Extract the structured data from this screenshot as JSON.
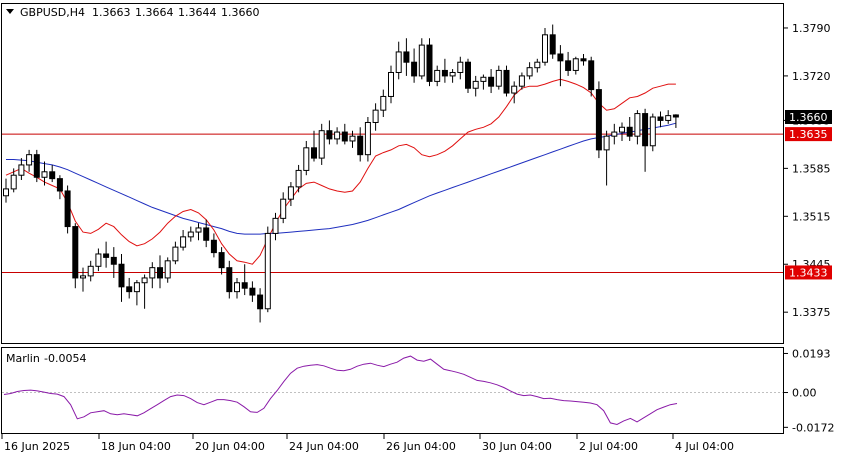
{
  "header": {
    "symbol": "GBPUSD,H4",
    "open": "1.3663",
    "high": "1.3664",
    "low": "1.3644",
    "close": "1.3660"
  },
  "indicator": {
    "name": "Marlin",
    "value": "-0.0054"
  },
  "colors": {
    "candle_body": "#000000",
    "ma_blue": "#1f2fbf",
    "ma_red": "#e01010",
    "level_line": "#c80000",
    "oscillator": "#8a1aa8",
    "price_tag_dark": "#000000",
    "price_tag_red": "#e00000"
  },
  "chart_data": [
    {
      "type": "candlestick",
      "title": "GBPUSD,H4",
      "ylim": [
        1.333,
        1.3825
      ],
      "y_ticks": [
        "1.3790",
        "1.3720",
        "1.3655",
        "1.3585",
        "1.3515",
        "1.3445",
        "1.3375"
      ],
      "x_ticks": [
        "16 Jun 2025",
        "18 Jun 04:00",
        "20 Jun 04:00",
        "24 Jun 04:00",
        "26 Jun 04:00",
        "30 Jun 04:00",
        "2 Jul 04:00",
        "4 Jul 04:00"
      ],
      "levels": [
        {
          "label": "1.3635",
          "value": 1.3635
        },
        {
          "label": "1.3433",
          "value": 1.3433
        }
      ],
      "current_price_label": "1.3660",
      "current_price": 1.366,
      "candles": [
        [
          1.3545,
          1.357,
          1.3535,
          1.3555
        ],
        [
          1.3555,
          1.3585,
          1.355,
          1.3575
        ],
        [
          1.3575,
          1.36,
          1.3568,
          1.359
        ],
        [
          1.359,
          1.3612,
          1.358,
          1.3605
        ],
        [
          1.3605,
          1.3612,
          1.3565,
          1.3572
        ],
        [
          1.3572,
          1.3595,
          1.356,
          1.358
        ],
        [
          1.358,
          1.359,
          1.3565,
          1.357
        ],
        [
          1.357,
          1.3575,
          1.354,
          1.3552
        ],
        [
          1.3552,
          1.356,
          1.349,
          1.35
        ],
        [
          1.35,
          1.3505,
          1.341,
          1.3425
        ],
        [
          1.3425,
          1.344,
          1.3405,
          1.3428
        ],
        [
          1.3428,
          1.345,
          1.342,
          1.3442
        ],
        [
          1.3442,
          1.3468,
          1.3435,
          1.346
        ],
        [
          1.346,
          1.3478,
          1.344,
          1.3455
        ],
        [
          1.3455,
          1.347,
          1.3425,
          1.3445
        ],
        [
          1.3445,
          1.346,
          1.339,
          1.3412
        ],
        [
          1.3412,
          1.3425,
          1.3395,
          1.3405
        ],
        [
          1.3405,
          1.3422,
          1.3385,
          1.3418
        ],
        [
          1.3418,
          1.343,
          1.338,
          1.3425
        ],
        [
          1.3425,
          1.3448,
          1.341,
          1.344
        ],
        [
          1.344,
          1.3458,
          1.341,
          1.3425
        ],
        [
          1.3425,
          1.3455,
          1.3418,
          1.345
        ],
        [
          1.345,
          1.3478,
          1.3445,
          1.347
        ],
        [
          1.347,
          1.3495,
          1.3465,
          1.3485
        ],
        [
          1.3485,
          1.35,
          1.3478,
          1.3492
        ],
        [
          1.3492,
          1.3505,
          1.348,
          1.3498
        ],
        [
          1.3498,
          1.351,
          1.347,
          1.348
        ],
        [
          1.348,
          1.349,
          1.3455,
          1.3462
        ],
        [
          1.3462,
          1.347,
          1.343,
          1.344
        ],
        [
          1.344,
          1.345,
          1.3395,
          1.3405
        ],
        [
          1.3405,
          1.3425,
          1.3395,
          1.3418
        ],
        [
          1.3418,
          1.3445,
          1.34,
          1.341
        ],
        [
          1.341,
          1.342,
          1.339,
          1.34
        ],
        [
          1.34,
          1.341,
          1.336,
          1.338
        ],
        [
          1.338,
          1.35,
          1.3375,
          1.349
        ],
        [
          1.349,
          1.352,
          1.348,
          1.3512
        ],
        [
          1.3512,
          1.355,
          1.3505,
          1.354
        ],
        [
          1.354,
          1.3565,
          1.353,
          1.3558
        ],
        [
          1.3558,
          1.359,
          1.355,
          1.3582
        ],
        [
          1.3582,
          1.3625,
          1.3575,
          1.3615
        ],
        [
          1.3615,
          1.364,
          1.3595,
          1.36
        ],
        [
          1.36,
          1.365,
          1.359,
          1.364
        ],
        [
          1.364,
          1.3655,
          1.362,
          1.3628
        ],
        [
          1.3628,
          1.3645,
          1.362,
          1.3638
        ],
        [
          1.3638,
          1.365,
          1.362,
          1.3625
        ],
        [
          1.3625,
          1.364,
          1.3615,
          1.3632
        ],
        [
          1.3632,
          1.3645,
          1.3595,
          1.3605
        ],
        [
          1.3605,
          1.366,
          1.3595,
          1.3652
        ],
        [
          1.3652,
          1.368,
          1.364,
          1.367
        ],
        [
          1.367,
          1.37,
          1.366,
          1.369
        ],
        [
          1.369,
          1.3735,
          1.368,
          1.3725
        ],
        [
          1.3725,
          1.377,
          1.3715,
          1.3755
        ],
        [
          1.3755,
          1.3775,
          1.372,
          1.374
        ],
        [
          1.374,
          1.376,
          1.371,
          1.372
        ],
        [
          1.372,
          1.3775,
          1.3715,
          1.3765
        ],
        [
          1.3765,
          1.3775,
          1.3705,
          1.3712
        ],
        [
          1.3712,
          1.3735,
          1.3705,
          1.3728
        ],
        [
          1.3728,
          1.3745,
          1.371,
          1.372
        ],
        [
          1.372,
          1.373,
          1.371,
          1.3725
        ],
        [
          1.3725,
          1.3748,
          1.3715,
          1.374
        ],
        [
          1.374,
          1.3745,
          1.3695,
          1.3702
        ],
        [
          1.3702,
          1.372,
          1.369,
          1.3712
        ],
        [
          1.3712,
          1.3722,
          1.37,
          1.3718
        ],
        [
          1.3718,
          1.373,
          1.3695,
          1.3705
        ],
        [
          1.3705,
          1.3735,
          1.37,
          1.3728
        ],
        [
          1.3728,
          1.3735,
          1.369,
          1.3695
        ],
        [
          1.3695,
          1.3712,
          1.368,
          1.3705
        ],
        [
          1.3705,
          1.3725,
          1.37,
          1.372
        ],
        [
          1.372,
          1.374,
          1.3715,
          1.3732
        ],
        [
          1.3732,
          1.3745,
          1.3725,
          1.374
        ],
        [
          1.374,
          1.379,
          1.3735,
          1.378
        ],
        [
          1.378,
          1.3795,
          1.3745,
          1.3752
        ],
        [
          1.3752,
          1.3765,
          1.3705,
          1.3742
        ],
        [
          1.3742,
          1.3755,
          1.372,
          1.3728
        ],
        [
          1.3728,
          1.3748,
          1.3722,
          1.3745
        ],
        [
          1.3745,
          1.3752,
          1.3735,
          1.3742
        ],
        [
          1.3742,
          1.3748,
          1.369,
          1.37
        ],
        [
          1.37,
          1.3712,
          1.36,
          1.3612
        ],
        [
          1.3612,
          1.364,
          1.356,
          1.3632
        ],
        [
          1.3632,
          1.365,
          1.362,
          1.3638
        ],
        [
          1.3638,
          1.3652,
          1.3625,
          1.3645
        ],
        [
          1.3645,
          1.366,
          1.3625,
          1.3632
        ],
        [
          1.3632,
          1.367,
          1.362,
          1.3665
        ],
        [
          1.3665,
          1.3672,
          1.358,
          1.3618
        ],
        [
          1.3618,
          1.3665,
          1.361,
          1.366
        ],
        [
          1.366,
          1.3668,
          1.3645,
          1.3655
        ],
        [
          1.3655,
          1.367,
          1.365,
          1.3662
        ],
        [
          1.3663,
          1.3664,
          1.3644,
          1.366
        ]
      ],
      "series": [
        {
          "values": [
            1.3598,
            1.3598,
            1.3597,
            1.3596,
            1.3594,
            1.3592,
            1.359,
            1.3587,
            1.3583,
            1.3578,
            1.3573,
            1.3568,
            1.3563,
            1.3558,
            1.3553,
            1.3548,
            1.3543,
            1.3538,
            1.3533,
            1.3528,
            1.3524,
            1.352,
            1.3516,
            1.3512,
            1.3509,
            1.3506,
            1.3503,
            1.35,
            1.3497,
            1.3493,
            1.349,
            1.3489,
            1.3489,
            1.3489,
            1.349,
            1.349,
            1.3491,
            1.3492,
            1.3493,
            1.3494,
            1.3495,
            1.3496,
            1.3497,
            1.3499,
            1.3501,
            1.3503,
            1.3506,
            1.3509,
            1.3513,
            1.3517,
            1.3521,
            1.3525,
            1.353,
            1.3535,
            1.354,
            1.3545,
            1.3549,
            1.3553,
            1.3557,
            1.3561,
            1.3565,
            1.3569,
            1.3573,
            1.3577,
            1.3581,
            1.3585,
            1.3589,
            1.3593,
            1.3597,
            1.3601,
            1.3605,
            1.3609,
            1.3613,
            1.3617,
            1.3621,
            1.3625,
            1.3628,
            1.363,
            1.3632,
            1.3634,
            1.3636,
            1.3638,
            1.364,
            1.3642,
            1.3644,
            1.3646,
            1.3648,
            1.3651
          ]
        },
        {
          "values": [
            1.3575,
            1.358,
            1.3585,
            1.3578,
            1.3572,
            1.3565,
            1.356,
            1.3555,
            1.3535,
            1.3508,
            1.3492,
            1.349,
            1.3496,
            1.3505,
            1.35,
            1.3488,
            1.3478,
            1.3472,
            1.3475,
            1.3482,
            1.3492,
            1.3505,
            1.3515,
            1.3522,
            1.3525,
            1.352,
            1.351,
            1.3495,
            1.3475,
            1.346,
            1.345,
            1.3448,
            1.3445,
            1.3458,
            1.3482,
            1.3505,
            1.3525,
            1.354,
            1.3555,
            1.3563,
            1.3565,
            1.356,
            1.3555,
            1.3552,
            1.355,
            1.3552,
            1.3565,
            1.3585,
            1.3603,
            1.3608,
            1.3612,
            1.3618,
            1.362,
            1.3615,
            1.3605,
            1.3602,
            1.3605,
            1.361,
            1.3618,
            1.3628,
            1.3638,
            1.3642,
            1.3645,
            1.365,
            1.366,
            1.3675,
            1.3692,
            1.3702,
            1.3705,
            1.3705,
            1.3708,
            1.3712,
            1.3715,
            1.3712,
            1.3708,
            1.3703,
            1.3695,
            1.368,
            1.367,
            1.3672,
            1.368,
            1.3688,
            1.369,
            1.3695,
            1.3702,
            1.3705,
            1.3708,
            1.3708
          ]
        }
      ]
    },
    {
      "type": "line",
      "title": "Marlin",
      "ylim": [
        -0.02,
        0.022
      ],
      "y_ticks": [
        "0.0193",
        "0.00",
        "-0.0172"
      ],
      "values": [
        -0.001,
        -0.0005,
        0.0005,
        0.001,
        0.0012,
        0.0008,
        0.0002,
        -0.0005,
        -0.0008,
        -0.002,
        -0.006,
        -0.013,
        -0.012,
        -0.01,
        -0.0095,
        -0.009,
        -0.0105,
        -0.011,
        -0.0105,
        -0.011,
        -0.0115,
        -0.01,
        -0.008,
        -0.006,
        -0.004,
        -0.002,
        -0.0012,
        -0.0015,
        -0.003,
        -0.005,
        -0.006,
        -0.0048,
        -0.0035,
        -0.0035,
        -0.004,
        -0.0048,
        -0.007,
        -0.0095,
        -0.0098,
        -0.0078,
        -0.003,
        0.001,
        0.0055,
        0.0095,
        0.012,
        0.013,
        0.0135,
        0.0138,
        0.0132,
        0.012,
        0.011,
        0.0108,
        0.0115,
        0.013,
        0.014,
        0.0145,
        0.0135,
        0.0128,
        0.014,
        0.015,
        0.017,
        0.018,
        0.016,
        0.0155,
        0.0165,
        0.014,
        0.0115,
        0.0108,
        0.01,
        0.009,
        0.0075,
        0.006,
        0.0055,
        0.0048,
        0.0038,
        0.0025,
        0.0008,
        -0.0008,
        -0.0015,
        -0.0012,
        -0.002,
        -0.003,
        -0.0028,
        -0.0035,
        -0.004,
        -0.0042,
        -0.0045,
        -0.0048,
        -0.0052,
        -0.006,
        -0.009,
        -0.015,
        -0.0158,
        -0.014,
        -0.0128,
        -0.0145,
        -0.0125,
        -0.0105,
        -0.0085,
        -0.0072,
        -0.006,
        -0.0054
      ]
    }
  ]
}
